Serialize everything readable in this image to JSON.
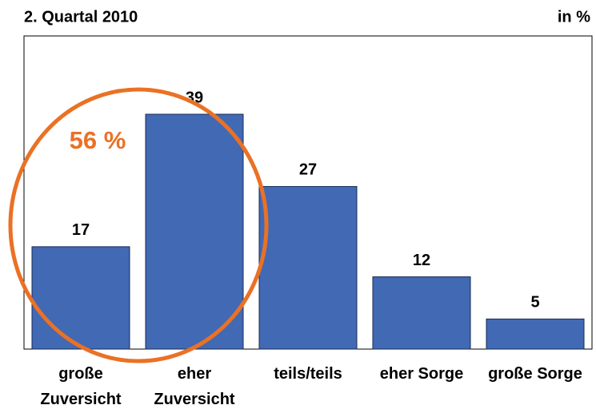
{
  "chart_data": {
    "type": "bar",
    "title": "2. Quartal 2010",
    "unit_label": "in %",
    "annotation": "56 %",
    "categories": [
      "große Zuversicht",
      "eher Zuversicht",
      "teils/teils",
      "eher Sorge",
      "große Sorge"
    ],
    "values": [
      17,
      39,
      27,
      12,
      5
    ],
    "color": "#4169b4",
    "annotation_color": "#ea7125",
    "ylim": [
      0,
      52
    ],
    "grid": false
  }
}
